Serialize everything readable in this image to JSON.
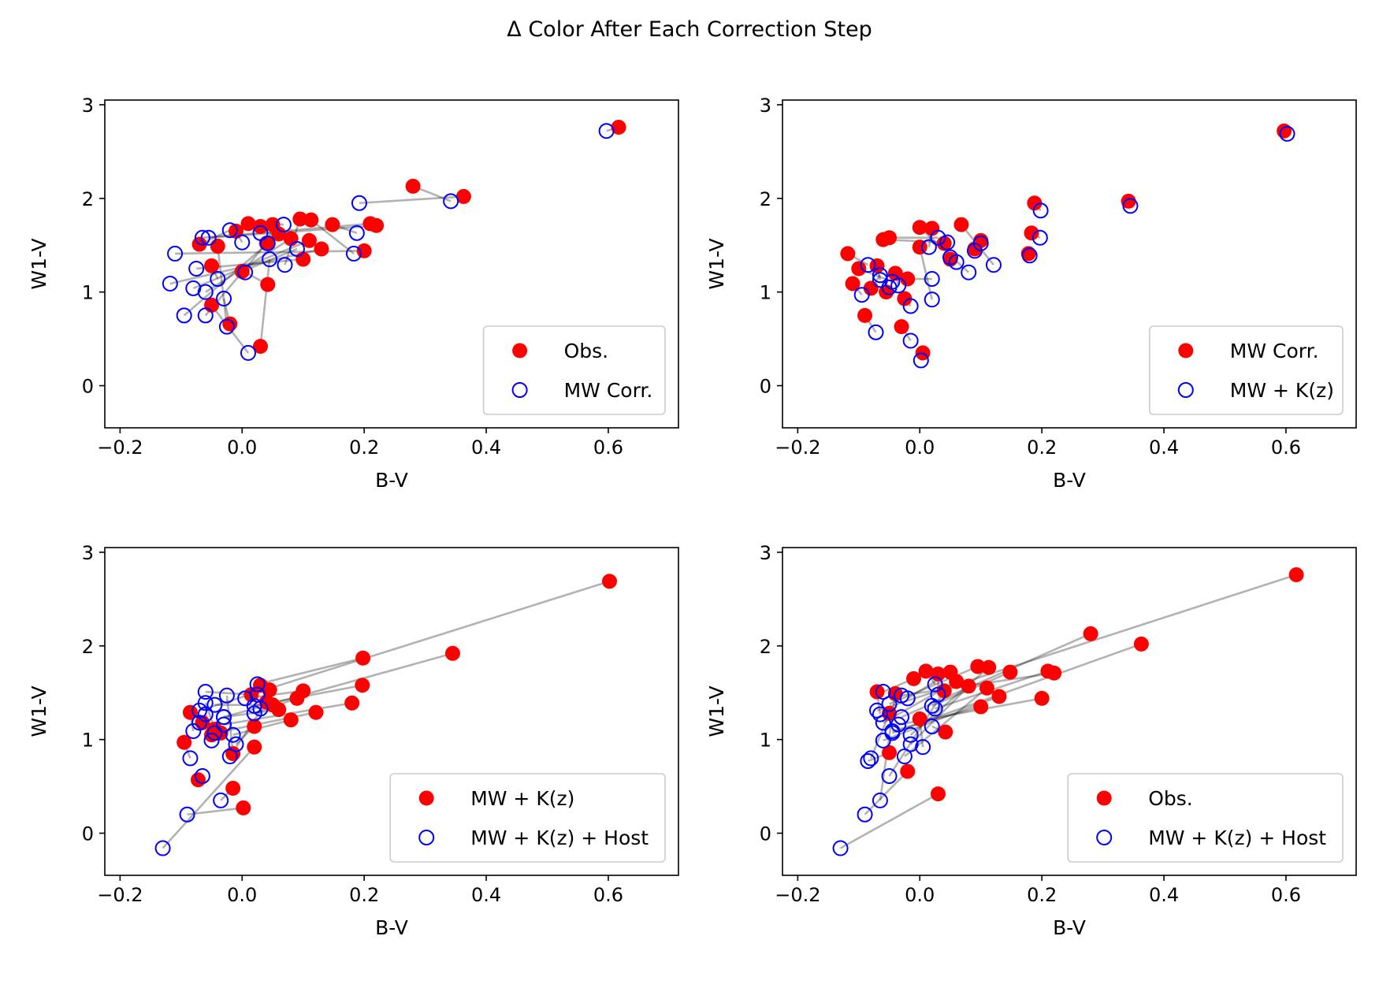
{
  "figure": {
    "title": "Δ Color After Each Correction Step"
  },
  "colors": {
    "filled_marker": "#ff0000",
    "open_marker": "#0000ff",
    "connector": "#7f7f7f",
    "axes": "#000000"
  },
  "chart_data": [
    {
      "type": "scatter",
      "panel": "top-left",
      "xlabel": "B-V",
      "ylabel": "W1-V",
      "xlim": [
        -0.225,
        0.715
      ],
      "ylim": [
        -0.45,
        3.05
      ],
      "xticks": [
        -0.2,
        0.0,
        0.2,
        0.4,
        0.6
      ],
      "xtick_labels": [
        "−0.2",
        "0.0",
        "0.2",
        "0.4",
        "0.6"
      ],
      "yticks": [
        0,
        1,
        2,
        3
      ],
      "ytick_labels": [
        "0",
        "1",
        "2",
        "3"
      ],
      "legend_position": "lower right",
      "connectors": true,
      "series": [
        {
          "name": "Obs.",
          "marker": "filled",
          "role": "start",
          "x": [
            0.617,
            0.28,
            0.363,
            0.148,
            0.113,
            0.095,
            0.01,
            0.03,
            0.05,
            -0.01,
            -0.07,
            0.22,
            0.21,
            0.2,
            0.13,
            0.1,
            0.11,
            0.08,
            0.06,
            0.04,
            -0.04,
            -0.05,
            0.0,
            0.042,
            -0.05,
            -0.02,
            0.03
          ],
          "y": [
            2.76,
            2.13,
            2.02,
            1.72,
            1.77,
            1.78,
            1.73,
            1.7,
            1.72,
            1.65,
            1.51,
            1.71,
            1.73,
            1.44,
            1.46,
            1.35,
            1.55,
            1.57,
            1.62,
            1.52,
            1.49,
            1.28,
            1.22,
            1.08,
            0.86,
            0.66,
            0.42
          ]
        },
        {
          "name": "MW Corr.",
          "marker": "open",
          "role": "end",
          "x": [
            0.597,
            0.342,
            0.192,
            0.188,
            0.183,
            0.07,
            0.068,
            0.03,
            0.042,
            0.0,
            -0.02,
            -0.055,
            -0.065,
            -0.11,
            -0.118,
            -0.075,
            -0.08,
            -0.06,
            -0.095,
            -0.06,
            -0.025,
            -0.04,
            0.09,
            0.005,
            0.01,
            -0.03,
            0.045
          ],
          "y": [
            2.72,
            1.97,
            1.95,
            1.63,
            1.41,
            1.29,
            1.72,
            1.63,
            1.52,
            1.53,
            1.66,
            1.58,
            1.58,
            1.41,
            1.09,
            1.25,
            1.04,
            1.0,
            0.75,
            0.75,
            0.63,
            1.14,
            1.46,
            1.21,
            0.35,
            0.93,
            1.35
          ]
        }
      ]
    },
    {
      "type": "scatter",
      "panel": "top-right",
      "xlabel": "B-V",
      "ylabel": "W1-V",
      "xlim": [
        -0.225,
        0.715
      ],
      "ylim": [
        -0.45,
        3.05
      ],
      "xticks": [
        -0.2,
        0.0,
        0.2,
        0.4,
        0.6
      ],
      "xtick_labels": [
        "−0.2",
        "0.0",
        "0.2",
        "0.4",
        "0.6"
      ],
      "yticks": [
        0,
        1,
        2,
        3
      ],
      "ytick_labels": [
        "0",
        "1",
        "2",
        "3"
      ],
      "legend_position": "lower right",
      "connectors": true,
      "series": [
        {
          "name": "MW Corr.",
          "marker": "filled",
          "role": "start",
          "x": [
            0.597,
            0.342,
            0.188,
            0.183,
            0.178,
            0.068,
            0.0,
            0.02,
            -0.05,
            -0.06,
            -0.118,
            -0.11,
            -0.1,
            -0.055,
            -0.09,
            -0.08,
            -0.03,
            -0.025,
            0.005,
            0.09,
            0.1,
            0.05,
            0.04,
            -0.04,
            0.0,
            -0.07,
            -0.02
          ],
          "y": [
            2.72,
            1.97,
            1.95,
            1.63,
            1.41,
            1.72,
            1.69,
            1.68,
            1.58,
            1.56,
            1.41,
            1.09,
            1.25,
            1.0,
            0.75,
            1.04,
            0.63,
            0.93,
            0.35,
            1.46,
            1.55,
            1.35,
            1.52,
            1.2,
            1.48,
            1.28,
            1.14
          ]
        },
        {
          "name": "MW + K(z)",
          "marker": "open",
          "role": "end",
          "x": [
            0.602,
            0.345,
            0.198,
            0.197,
            0.18,
            0.121,
            0.08,
            0.015,
            0.03,
            0.045,
            -0.085,
            -0.095,
            -0.045,
            -0.05,
            -0.072,
            -0.065,
            -0.015,
            -0.015,
            0.002,
            0.1,
            0.09,
            0.06,
            0.05,
            -0.035,
            0.02,
            -0.065,
            0.02
          ],
          "y": [
            2.69,
            1.92,
            1.87,
            1.58,
            1.39,
            1.29,
            1.21,
            1.48,
            1.58,
            1.53,
            1.29,
            0.97,
            1.11,
            1.05,
            0.57,
            1.18,
            0.48,
            0.85,
            0.27,
            1.52,
            1.44,
            1.32,
            1.37,
            1.07,
            0.92,
            1.13,
            1.14
          ]
        }
      ]
    },
    {
      "type": "scatter",
      "panel": "bottom-left",
      "xlabel": "B-V",
      "ylabel": "W1-V",
      "xlim": [
        -0.225,
        0.715
      ],
      "ylim": [
        -0.45,
        3.05
      ],
      "xticks": [
        -0.2,
        0.0,
        0.2,
        0.4,
        0.6
      ],
      "xtick_labels": [
        "−0.2",
        "0.0",
        "0.2",
        "0.4",
        "0.6"
      ],
      "yticks": [
        0,
        1,
        2,
        3
      ],
      "ytick_labels": [
        "0",
        "1",
        "2",
        "3"
      ],
      "legend_position": "lower right",
      "connectors": true,
      "series": [
        {
          "name": "MW + K(z)",
          "marker": "filled",
          "role": "start",
          "x": [
            0.602,
            0.345,
            0.198,
            0.197,
            0.18,
            0.121,
            0.08,
            0.1,
            0.09,
            0.06,
            0.05,
            0.03,
            0.045,
            0.015,
            -0.045,
            -0.05,
            -0.085,
            -0.095,
            -0.072,
            -0.065,
            -0.015,
            -0.015,
            0.002,
            0.02,
            -0.035,
            0.02,
            0.04
          ],
          "y": [
            2.69,
            1.92,
            1.87,
            1.58,
            1.39,
            1.29,
            1.21,
            1.52,
            1.44,
            1.32,
            1.37,
            1.58,
            1.53,
            1.48,
            1.11,
            1.05,
            1.29,
            0.97,
            0.57,
            1.18,
            0.48,
            0.85,
            0.27,
            0.92,
            1.07,
            1.14,
            1.4
          ]
        },
        {
          "name": "MW + K(z) + Host",
          "marker": "open",
          "role": "end",
          "x": [
            -0.07,
            -0.03,
            0.025,
            0.02,
            -0.03,
            -0.045,
            -0.015,
            0.005,
            0.02,
            -0.03,
            -0.045,
            0.025,
            0.03,
            -0.06,
            -0.06,
            -0.06,
            -0.08,
            -0.085,
            -0.065,
            -0.07,
            -0.035,
            -0.025,
            -0.09,
            -0.13,
            -0.05,
            -0.01,
            -0.02
          ],
          "y": [
            1.31,
            1.24,
            1.59,
            1.36,
            1.16,
            1.07,
            1.05,
            1.44,
            1.28,
            1.24,
            1.37,
            1.48,
            1.33,
            1.51,
            1.39,
            1.27,
            1.09,
            0.8,
            0.61,
            1.18,
            0.35,
            1.47,
            0.2,
            -0.16,
            0.99,
            0.95,
            0.82
          ]
        }
      ]
    },
    {
      "type": "scatter",
      "panel": "bottom-right",
      "xlabel": "B-V",
      "ylabel": "W1-V",
      "xlim": [
        -0.225,
        0.715
      ],
      "ylim": [
        -0.45,
        3.05
      ],
      "xticks": [
        -0.2,
        0.0,
        0.2,
        0.4,
        0.6
      ],
      "xtick_labels": [
        "−0.2",
        "0.0",
        "0.2",
        "0.4",
        "0.6"
      ],
      "yticks": [
        0,
        1,
        2,
        3
      ],
      "ytick_labels": [
        "0",
        "1",
        "2",
        "3"
      ],
      "legend_position": "lower right",
      "connectors": true,
      "series": [
        {
          "name": "Obs.",
          "marker": "filled",
          "role": "start",
          "x": [
            0.617,
            0.28,
            0.363,
            0.148,
            0.113,
            0.095,
            0.01,
            0.03,
            0.05,
            -0.01,
            -0.07,
            0.22,
            0.21,
            0.2,
            0.13,
            0.1,
            0.11,
            0.08,
            0.06,
            0.04,
            -0.04,
            -0.05,
            0.0,
            0.042,
            -0.05,
            -0.02,
            0.03
          ],
          "y": [
            2.76,
            2.13,
            2.02,
            1.72,
            1.77,
            1.78,
            1.73,
            1.7,
            1.72,
            1.65,
            1.51,
            1.71,
            1.73,
            1.44,
            1.46,
            1.35,
            1.55,
            1.57,
            1.62,
            1.52,
            1.49,
            1.28,
            1.22,
            1.08,
            0.86,
            0.66,
            0.42
          ]
        },
        {
          "name": "MW + K(z) + Host",
          "marker": "open",
          "role": "end",
          "x": [
            -0.07,
            -0.03,
            -0.045,
            0.02,
            -0.015,
            -0.05,
            0.025,
            0.03,
            -0.02,
            -0.06,
            -0.065,
            -0.03,
            0.025,
            -0.035,
            -0.06,
            -0.045,
            -0.025,
            -0.015,
            -0.06,
            -0.05,
            -0.065,
            -0.08,
            0.005,
            0.02,
            -0.085,
            -0.09,
            -0.13
          ],
          "y": [
            1.31,
            1.24,
            1.07,
            1.36,
            1.05,
            1.38,
            1.59,
            1.48,
            1.44,
            1.51,
            1.27,
            1.47,
            1.33,
            1.16,
            0.99,
            1.09,
            0.82,
            0.95,
            1.18,
            0.61,
            0.35,
            0.8,
            0.92,
            1.14,
            0.77,
            0.2,
            -0.16
          ]
        }
      ]
    }
  ]
}
